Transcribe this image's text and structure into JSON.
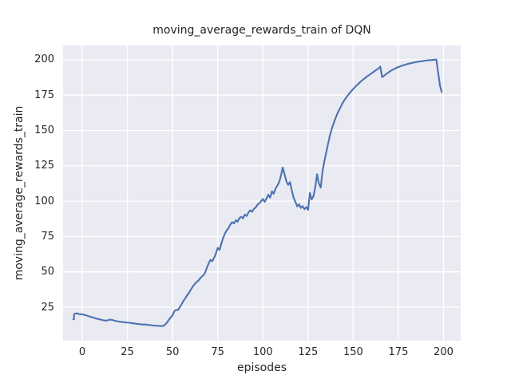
{
  "chart_data": {
    "type": "line",
    "title": "moving_average_rewards_train of DQN",
    "xlabel": "episodes",
    "ylabel": "moving_average_rewards_train",
    "x_ticks": [
      0,
      25,
      50,
      75,
      100,
      125,
      150,
      175,
      200
    ],
    "y_ticks": [
      25,
      50,
      75,
      100,
      125,
      150,
      175,
      200
    ],
    "xlim": [
      -10.61,
      209.5
    ],
    "ylim": [
      1.3,
      210.1
    ],
    "grid": true,
    "legend": null,
    "colors": {
      "line": "#4C72B0",
      "axes_background": "#EAEAF2",
      "grid": "#FFFFFF",
      "figure_background": "#FFFFFF",
      "text": "#262626"
    },
    "series": [
      {
        "name": "moving_average_rewards_train",
        "points": [
          [
            -5,
            16.4
          ],
          [
            -4.6,
            16.4
          ],
          [
            -4.5,
            20.0
          ],
          [
            -4,
            20.4
          ],
          [
            -3,
            20.7
          ],
          [
            -2,
            20.2
          ],
          [
            -1,
            19.9
          ],
          [
            0,
            20.1
          ],
          [
            1,
            19.6
          ],
          [
            2,
            19.3
          ],
          [
            3,
            18.9
          ],
          [
            4,
            18.4
          ],
          [
            5,
            18.1
          ],
          [
            6,
            17.7
          ],
          [
            7,
            17.3
          ],
          [
            8,
            16.9
          ],
          [
            9,
            16.6
          ],
          [
            10,
            16.3
          ],
          [
            11,
            16.0
          ],
          [
            12,
            15.7
          ],
          [
            13,
            15.5
          ],
          [
            14,
            15.7
          ],
          [
            15,
            16.1
          ],
          [
            16,
            16.2
          ],
          [
            17,
            15.8
          ],
          [
            18,
            15.4
          ],
          [
            19,
            15.1
          ],
          [
            20,
            14.9
          ],
          [
            21,
            14.7
          ],
          [
            22,
            14.6
          ],
          [
            23,
            14.4
          ],
          [
            24,
            14.3
          ],
          [
            25,
            14.1
          ],
          [
            26,
            14.0
          ],
          [
            27,
            13.8
          ],
          [
            28,
            13.6
          ],
          [
            29,
            13.5
          ],
          [
            30,
            13.3
          ],
          [
            31,
            13.1
          ],
          [
            32,
            13.0
          ],
          [
            33,
            12.8
          ],
          [
            34,
            12.7
          ],
          [
            35,
            12.8
          ],
          [
            36,
            12.6
          ],
          [
            37,
            12.4
          ],
          [
            38,
            12.3
          ],
          [
            39,
            12.1
          ],
          [
            40,
            12.0
          ],
          [
            41,
            11.9
          ],
          [
            42,
            11.8
          ],
          [
            43,
            11.7
          ],
          [
            44,
            11.6
          ],
          [
            45,
            11.9
          ],
          [
            46,
            12.8
          ],
          [
            47,
            14.2
          ],
          [
            48,
            16.2
          ],
          [
            49,
            17.8
          ],
          [
            50,
            19.3
          ],
          [
            51,
            22.2
          ],
          [
            52,
            23.1
          ],
          [
            53,
            23.0
          ],
          [
            54,
            25.0
          ],
          [
            55,
            27.0
          ],
          [
            56,
            29.5
          ],
          [
            57,
            31.2
          ],
          [
            58,
            33.3
          ],
          [
            59,
            35.0
          ],
          [
            60,
            37.2
          ],
          [
            61,
            39.2
          ],
          [
            62,
            41.0
          ],
          [
            63,
            42.5
          ],
          [
            64,
            43.4
          ],
          [
            65,
            45.0
          ],
          [
            66,
            46.4
          ],
          [
            67,
            47.6
          ],
          [
            68,
            49.4
          ],
          [
            69,
            53.0
          ],
          [
            70,
            56.0
          ],
          [
            71,
            58.5
          ],
          [
            72,
            57.5
          ],
          [
            73,
            60.0
          ],
          [
            74,
            63.0
          ],
          [
            75,
            67.0
          ],
          [
            76,
            65.5
          ],
          [
            77,
            70.0
          ],
          [
            78,
            74.0
          ],
          [
            79,
            77.0
          ],
          [
            80,
            79.5
          ],
          [
            81,
            81.0
          ],
          [
            82,
            83.5
          ],
          [
            83,
            85.2
          ],
          [
            84,
            84.2
          ],
          [
            85,
            86.5
          ],
          [
            86,
            85.5
          ],
          [
            87,
            88.0
          ],
          [
            88,
            89.0
          ],
          [
            89,
            87.8
          ],
          [
            90,
            90.5
          ],
          [
            91,
            89.5
          ],
          [
            92,
            92.0
          ],
          [
            93,
            93.5
          ],
          [
            94,
            92.5
          ],
          [
            95,
            94.5
          ],
          [
            96,
            95.5
          ],
          [
            97,
            97.5
          ],
          [
            98,
            98.5
          ],
          [
            99,
            100.0
          ],
          [
            100,
            101.5
          ],
          [
            101,
            99.5
          ],
          [
            102,
            102.0
          ],
          [
            103,
            104.5
          ],
          [
            104,
            102.5
          ],
          [
            105,
            107.0
          ],
          [
            106,
            105.2
          ],
          [
            107,
            109.0
          ],
          [
            108,
            111.0
          ],
          [
            109,
            113.5
          ],
          [
            110,
            118.0
          ],
          [
            111,
            123.8
          ],
          [
            112,
            119.0
          ],
          [
            113,
            114.0
          ],
          [
            114,
            111.5
          ],
          [
            115,
            113.5
          ],
          [
            116,
            107.5
          ],
          [
            117,
            102.5
          ],
          [
            118,
            99.5
          ],
          [
            119,
            96.3
          ],
          [
            120,
            97.8
          ],
          [
            121,
            95.2
          ],
          [
            122,
            96.5
          ],
          [
            123,
            94.3
          ],
          [
            124,
            95.8
          ],
          [
            125,
            93.8
          ],
          [
            126,
            105.9
          ],
          [
            127,
            101.2
          ],
          [
            128,
            103.5
          ],
          [
            129,
            110.0
          ],
          [
            130,
            119.1
          ],
          [
            131,
            112.5
          ],
          [
            132,
            109.6
          ],
          [
            133,
            121.0
          ],
          [
            134,
            128.0
          ],
          [
            135,
            134.0
          ],
          [
            136,
            140.0
          ],
          [
            137,
            146.0
          ],
          [
            138,
            150.5
          ],
          [
            139,
            154.5
          ],
          [
            140,
            158.0
          ],
          [
            141,
            161.2
          ],
          [
            142,
            164.0
          ],
          [
            143,
            166.5
          ],
          [
            144,
            169.0
          ],
          [
            145,
            171.2
          ],
          [
            146,
            173.0
          ],
          [
            147,
            174.8
          ],
          [
            148,
            176.4
          ],
          [
            149,
            177.9
          ],
          [
            150,
            179.3
          ],
          [
            151,
            180.7
          ],
          [
            152,
            182.0
          ],
          [
            153,
            183.2
          ],
          [
            154,
            184.4
          ],
          [
            155,
            185.5
          ],
          [
            156,
            186.5
          ],
          [
            157,
            187.5
          ],
          [
            158,
            188.5
          ],
          [
            159,
            189.4
          ],
          [
            160,
            190.3
          ],
          [
            161,
            191.2
          ],
          [
            162,
            192.1
          ],
          [
            163,
            193.0
          ],
          [
            164,
            193.8
          ],
          [
            165,
            195.2
          ],
          [
            166,
            187.7
          ],
          [
            167,
            188.6
          ],
          [
            168,
            189.6
          ],
          [
            169,
            190.6
          ],
          [
            170,
            191.5
          ],
          [
            171,
            192.3
          ],
          [
            172,
            193.0
          ],
          [
            173,
            193.7
          ],
          [
            174,
            194.3
          ],
          [
            175,
            194.8
          ],
          [
            176,
            195.3
          ],
          [
            177,
            195.8
          ],
          [
            178,
            196.2
          ],
          [
            179,
            196.6
          ],
          [
            180,
            197.0
          ],
          [
            181,
            197.3
          ],
          [
            182,
            197.6
          ],
          [
            183,
            197.9
          ],
          [
            184,
            198.2
          ],
          [
            185,
            198.4
          ],
          [
            186,
            198.6
          ],
          [
            187,
            198.8
          ],
          [
            188,
            199.0
          ],
          [
            189,
            199.2
          ],
          [
            190,
            199.4
          ],
          [
            191,
            199.6
          ],
          [
            192,
            199.7
          ],
          [
            193,
            199.8
          ],
          [
            194,
            199.9
          ],
          [
            195,
            200.0
          ],
          [
            196,
            200.2
          ],
          [
            197,
            191.0
          ],
          [
            198,
            182.0
          ],
          [
            199,
            177.2
          ]
        ]
      }
    ]
  }
}
